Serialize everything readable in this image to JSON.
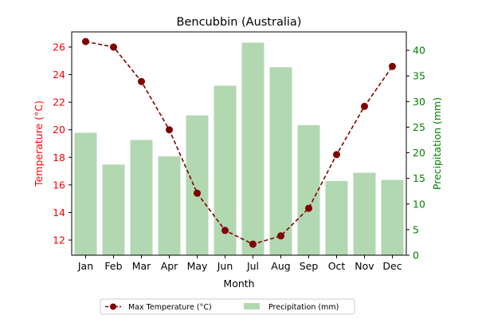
{
  "chart_data": {
    "type": "bar+line",
    "title": "Bencubbin (Australia)",
    "xlabel": "Month",
    "ylabel_left": "Temperature (°C)",
    "ylabel_right": "Precipitation (mm)",
    "categories": [
      "Jan",
      "Feb",
      "Mar",
      "Apr",
      "May",
      "Jun",
      "Jul",
      "Aug",
      "Sep",
      "Oct",
      "Nov",
      "Dec"
    ],
    "series": [
      {
        "name": "Max Temperature (°C)",
        "kind": "line",
        "axis": "left",
        "color": "#800000",
        "values": [
          26.4,
          26.0,
          23.5,
          20.0,
          15.4,
          12.7,
          11.7,
          12.3,
          14.3,
          18.2,
          21.7,
          24.6
        ]
      },
      {
        "name": "Precipitation (mm)",
        "kind": "bar",
        "axis": "right",
        "color": "#b2d8b2",
        "values": [
          23.9,
          17.7,
          22.5,
          19.3,
          27.3,
          33.1,
          41.5,
          36.7,
          25.4,
          14.5,
          16.1,
          14.7
        ]
      }
    ],
    "ylim_left": [
      10.9,
      27.1
    ],
    "yticks_left": [
      12,
      14,
      16,
      18,
      20,
      22,
      24,
      26
    ],
    "ylim_right": [
      0,
      43.6
    ],
    "yticks_right": [
      0,
      5,
      10,
      15,
      20,
      25,
      30,
      35,
      40
    ],
    "left_axis_color": "#ff0000",
    "right_axis_color": "#008000",
    "grid": false,
    "legend_position": "bottom-center"
  }
}
